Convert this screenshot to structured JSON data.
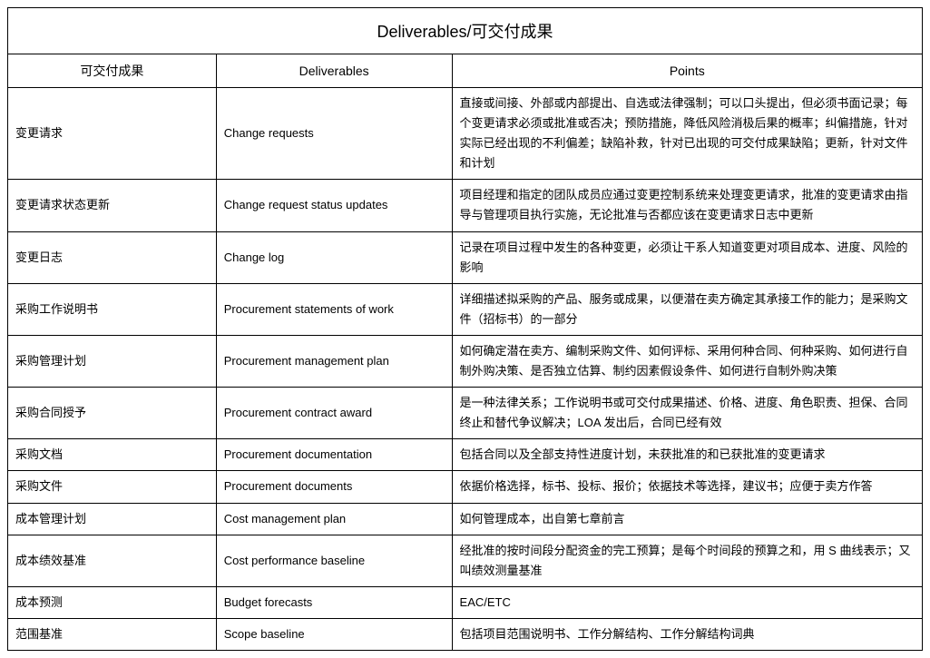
{
  "title": "Deliverables/可交付成果",
  "columns": {
    "cn": "可交付成果",
    "en": "Deliverables",
    "pts": "Points"
  },
  "rows": [
    {
      "cn": "变更请求",
      "en": "Change requests",
      "pts": "直接或间接、外部或内部提出、自选或法律强制；可以口头提出，但必须书面记录；每个变更请求必须或批准或否决；预防措施，降低风险消极后果的概率；纠偏措施，针对实际已经出现的不利偏差；缺陷补救，针对已出现的可交付成果缺陷；更新，针对文件和计划"
    },
    {
      "cn": "变更请求状态更新",
      "en": "Change request status updates",
      "pts": "项目经理和指定的团队成员应通过变更控制系统来处理变更请求，批准的变更请求由指导与管理项目执行实施，无论批准与否都应该在变更请求日志中更新"
    },
    {
      "cn": "变更日志",
      "en": "Change log",
      "pts": "记录在项目过程中发生的各种变更，必须让干系人知道变更对项目成本、进度、风险的影响"
    },
    {
      "cn": "采购工作说明书",
      "en": "Procurement statements of work",
      "pts": "详细描述拟采购的产品、服务或成果，以便潜在卖方确定其承接工作的能力；是采购文件（招标书）的一部分"
    },
    {
      "cn": "采购管理计划",
      "en": "Procurement management plan",
      "pts": "如何确定潜在卖方、编制采购文件、如何评标、采用何种合同、何种采购、如何进行自制外购决策、是否独立估算、制约因素假设条件、如何进行自制外购决策"
    },
    {
      "cn": "采购合同授予",
      "en": "Procurement contract award",
      "pts": "是一种法律关系；工作说明书或可交付成果描述、价格、进度、角色职责、担保、合同终止和替代争议解决；LOA 发出后，合同已经有效"
    },
    {
      "cn": "采购文档",
      "en": "Procurement documentation",
      "pts": "包括合同以及全部支持性进度计划，未获批准的和已获批准的变更请求"
    },
    {
      "cn": "采购文件",
      "en": "Procurement documents",
      "pts": "依据价格选择，标书、投标、报价；依据技术等选择，建议书；应便于卖方作答"
    },
    {
      "cn": "成本管理计划",
      "en": "Cost management plan",
      "pts": "如何管理成本，出自第七章前言"
    },
    {
      "cn": "成本绩效基准",
      "en": "Cost performance baseline",
      "pts": "经批准的按时间段分配资金的完工预算；是每个时间段的预算之和，用 S 曲线表示；又叫绩效测量基准"
    },
    {
      "cn": "成本预测",
      "en": "Budget forecasts",
      "pts": "EAC/ETC"
    },
    {
      "cn": "范围基准",
      "en": "Scope baseline",
      "pts": "包括项目范围说明书、工作分解结构、工作分解结构词典"
    }
  ]
}
